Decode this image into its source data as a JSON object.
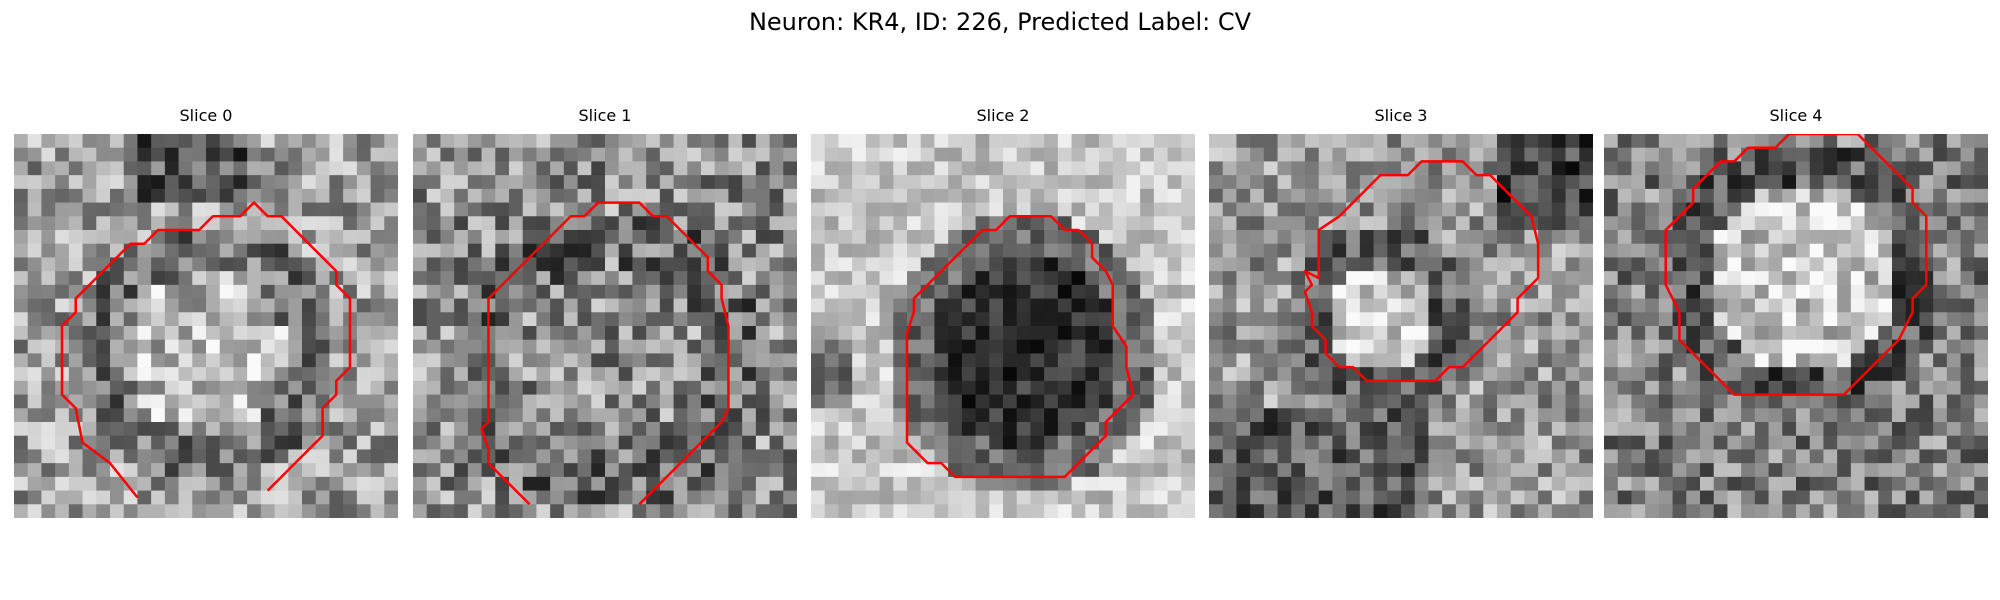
{
  "figure": {
    "title": "Neuron: KR4, ID: 226, Predicted Label: CV"
  },
  "colors": {
    "contour": "#ff0000",
    "background": "#ffffff"
  },
  "image": {
    "colormap": "grayscale",
    "grid_cells": 28
  },
  "slices": [
    {
      "title": "Slice 0",
      "contour": [
        [
          9,
          26.5
        ],
        [
          7,
          24
        ],
        [
          5,
          22.5
        ],
        [
          4.5,
          20
        ],
        [
          3.5,
          19
        ],
        [
          3.5,
          14
        ],
        [
          4.5,
          13
        ],
        [
          4.5,
          12
        ],
        [
          5.5,
          11
        ],
        [
          6.5,
          10
        ],
        [
          7.5,
          9
        ],
        [
          8.5,
          8
        ],
        [
          9.5,
          8
        ],
        [
          10.5,
          7
        ],
        [
          13.5,
          7
        ],
        [
          14.5,
          6
        ],
        [
          16.5,
          6
        ],
        [
          17.5,
          5
        ],
        [
          18.5,
          6
        ],
        [
          19.5,
          6
        ],
        [
          20.5,
          7
        ],
        [
          21.5,
          8
        ],
        [
          22.5,
          9
        ],
        [
          23.5,
          10
        ],
        [
          23.5,
          11
        ],
        [
          24.5,
          12
        ],
        [
          24.5,
          14
        ],
        [
          24.5,
          15
        ],
        [
          24.5,
          17
        ],
        [
          23.5,
          18
        ],
        [
          23.5,
          19
        ],
        [
          22.5,
          20
        ],
        [
          22.5,
          22
        ],
        [
          21.5,
          23
        ],
        [
          20.5,
          24
        ],
        [
          19.5,
          25
        ],
        [
          18.5,
          26
        ]
      ],
      "closed": false
    },
    {
      "title": "Slice 1",
      "contour": [
        [
          8.5,
          27
        ],
        [
          6.5,
          25
        ],
        [
          5.5,
          24
        ],
        [
          5.5,
          23
        ],
        [
          5,
          21.5
        ],
        [
          5.5,
          21
        ],
        [
          5.5,
          14
        ],
        [
          5.5,
          12
        ],
        [
          6.5,
          11
        ],
        [
          7.5,
          10
        ],
        [
          8.5,
          9
        ],
        [
          9.5,
          8
        ],
        [
          10.5,
          7
        ],
        [
          11.5,
          6
        ],
        [
          12.5,
          6
        ],
        [
          13.5,
          5
        ],
        [
          16.5,
          5
        ],
        [
          17.5,
          6
        ],
        [
          18.5,
          6
        ],
        [
          19.5,
          7
        ],
        [
          20.5,
          8
        ],
        [
          21.5,
          9
        ],
        [
          21.5,
          10
        ],
        [
          22.5,
          11
        ],
        [
          22.5,
          12
        ],
        [
          23,
          14
        ],
        [
          23,
          20
        ],
        [
          22.5,
          21
        ],
        [
          21.5,
          22
        ],
        [
          20.5,
          23
        ],
        [
          19.5,
          24
        ],
        [
          18.5,
          25
        ],
        [
          17.5,
          26
        ],
        [
          16.5,
          27
        ]
      ],
      "closed": false
    },
    {
      "title": "Slice 2",
      "contour": [
        [
          7.5,
          13
        ],
        [
          7.5,
          12
        ],
        [
          8.5,
          11
        ],
        [
          9.5,
          10
        ],
        [
          10.5,
          9
        ],
        [
          11.5,
          8
        ],
        [
          12.5,
          7
        ],
        [
          13.5,
          7
        ],
        [
          14.5,
          6
        ],
        [
          17.5,
          6
        ],
        [
          18.5,
          7
        ],
        [
          19.5,
          7
        ],
        [
          20.5,
          8
        ],
        [
          20.5,
          9
        ],
        [
          21.5,
          10
        ],
        [
          22,
          11
        ],
        [
          22,
          14
        ],
        [
          23,
          15.5
        ],
        [
          23,
          17
        ],
        [
          23.5,
          19
        ],
        [
          22.5,
          20
        ],
        [
          21.5,
          21
        ],
        [
          21.5,
          22
        ],
        [
          20.5,
          23
        ],
        [
          19.5,
          24
        ],
        [
          18.5,
          25
        ],
        [
          10.5,
          25
        ],
        [
          9.5,
          24
        ],
        [
          8.5,
          24
        ],
        [
          7.5,
          23
        ],
        [
          7,
          22.5
        ],
        [
          7,
          14.5
        ]
      ],
      "closed": true
    },
    {
      "title": "Slice 3",
      "contour": [
        [
          8,
          10.5
        ],
        [
          8,
          7
        ],
        [
          9.5,
          6
        ],
        [
          10.5,
          5
        ],
        [
          11.5,
          4
        ],
        [
          12.5,
          3
        ],
        [
          14.5,
          3
        ],
        [
          15.5,
          2
        ],
        [
          18.5,
          2
        ],
        [
          19.5,
          3
        ],
        [
          20.5,
          3
        ],
        [
          21.5,
          4
        ],
        [
          22.5,
          5
        ],
        [
          23.5,
          6
        ],
        [
          24,
          8
        ],
        [
          24,
          10.5
        ],
        [
          23.5,
          11
        ],
        [
          22.5,
          12
        ],
        [
          22.5,
          13
        ],
        [
          21.5,
          14
        ],
        [
          20.5,
          15
        ],
        [
          19.5,
          16
        ],
        [
          18.5,
          17
        ],
        [
          17.5,
          17
        ],
        [
          16.5,
          18
        ],
        [
          11.5,
          18
        ],
        [
          10.5,
          17
        ],
        [
          9.5,
          17
        ],
        [
          8.5,
          16
        ],
        [
          8.5,
          15
        ],
        [
          7.5,
          14
        ],
        [
          7.5,
          13
        ],
        [
          7,
          11.5
        ],
        [
          7.5,
          11
        ],
        [
          7,
          10
        ]
      ],
      "closed": true
    },
    {
      "title": "Slice 4",
      "contour": [
        [
          5,
          12
        ],
        [
          4.5,
          11
        ],
        [
          4.5,
          7
        ],
        [
          5.5,
          6
        ],
        [
          6.5,
          5
        ],
        [
          6.5,
          4
        ],
        [
          7.5,
          3
        ],
        [
          8.5,
          2
        ],
        [
          9.5,
          2
        ],
        [
          10.5,
          1
        ],
        [
          12.5,
          1
        ],
        [
          13.5,
          0
        ],
        [
          18.5,
          0
        ],
        [
          19.5,
          1
        ],
        [
          20.5,
          2
        ],
        [
          21.5,
          3
        ],
        [
          22.5,
          4
        ],
        [
          22.5,
          5
        ],
        [
          23.5,
          6
        ],
        [
          23.5,
          7
        ],
        [
          23.5,
          11
        ],
        [
          22.5,
          12
        ],
        [
          22.5,
          13
        ],
        [
          22,
          14
        ],
        [
          21.5,
          15
        ],
        [
          20.5,
          16
        ],
        [
          19.5,
          17
        ],
        [
          18.5,
          18
        ],
        [
          17.5,
          19
        ],
        [
          9.5,
          19
        ],
        [
          8.5,
          18
        ],
        [
          7.5,
          17
        ],
        [
          6.5,
          16
        ],
        [
          5.5,
          15
        ],
        [
          5.5,
          13
        ]
      ],
      "closed": true
    }
  ]
}
